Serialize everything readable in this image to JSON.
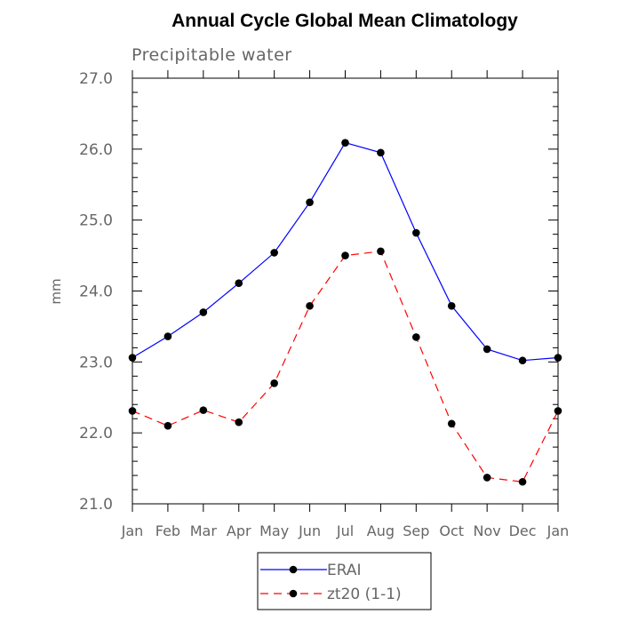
{
  "chart_data": {
    "type": "line",
    "title": "Annual Cycle Global Mean Climatology",
    "subtitle": "Precipitable water",
    "ylabel": "mm",
    "xlabel": "",
    "categories": [
      "Jan",
      "Feb",
      "Mar",
      "Apr",
      "May",
      "Jun",
      "Jul",
      "Aug",
      "Sep",
      "Oct",
      "Nov",
      "Dec",
      "Jan"
    ],
    "ylim": [
      21.0,
      27.0
    ],
    "yticks": [
      "21.0",
      "22.0",
      "23.0",
      "24.0",
      "25.0",
      "26.0",
      "27.0"
    ],
    "grid": false,
    "legend_position": "bottom-center",
    "series": [
      {
        "name": "ERAI",
        "color": "#0000ff",
        "dash": "solid",
        "marker": "filled-circle",
        "values": [
          23.06,
          23.36,
          23.7,
          24.11,
          24.54,
          25.25,
          26.09,
          25.95,
          24.82,
          23.79,
          23.18,
          23.02,
          23.06
        ]
      },
      {
        "name": "zt20 (1-1)",
        "color": "#ff0000",
        "dash": "dashed",
        "marker": "filled-circle",
        "values": [
          22.31,
          22.1,
          22.32,
          22.15,
          22.7,
          23.79,
          24.5,
          24.56,
          23.35,
          22.13,
          21.37,
          21.31,
          22.31
        ]
      }
    ]
  }
}
